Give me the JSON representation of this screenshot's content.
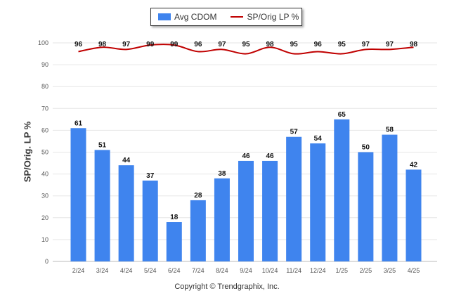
{
  "legend": {
    "bar_label": "Avg CDOM",
    "line_label": "SP/Orig LP %"
  },
  "copyright": "Copyright © Trendgraphix, Inc.",
  "colors": {
    "bar": "#3f84ee",
    "line": "#c00000",
    "grid": "#e6e6e6"
  },
  "chart_data": {
    "type": "bar",
    "categories": [
      "2/24",
      "3/24",
      "4/24",
      "5/24",
      "6/24",
      "7/24",
      "8/24",
      "9/24",
      "10/24",
      "11/24",
      "12/24",
      "1/25",
      "2/25",
      "3/25",
      "4/25"
    ],
    "series": [
      {
        "name": "Avg CDOM",
        "type": "bar",
        "values": [
          61,
          51,
          44,
          37,
          18,
          28,
          38,
          46,
          46,
          57,
          54,
          65,
          50,
          58,
          42
        ]
      },
      {
        "name": "SP/Orig LP %",
        "type": "line",
        "values": [
          96,
          98,
          97,
          99,
          99,
          96,
          97,
          95,
          98,
          95,
          96,
          95,
          97,
          97,
          98
        ]
      }
    ],
    "ylabel": "SP/Orig. LP %",
    "xlabel": "",
    "ylim": [
      0,
      100
    ],
    "yticks": [
      0,
      10,
      20,
      30,
      40,
      50,
      60,
      70,
      80,
      90,
      100
    ],
    "grid": true,
    "legend_position": "top-center"
  }
}
